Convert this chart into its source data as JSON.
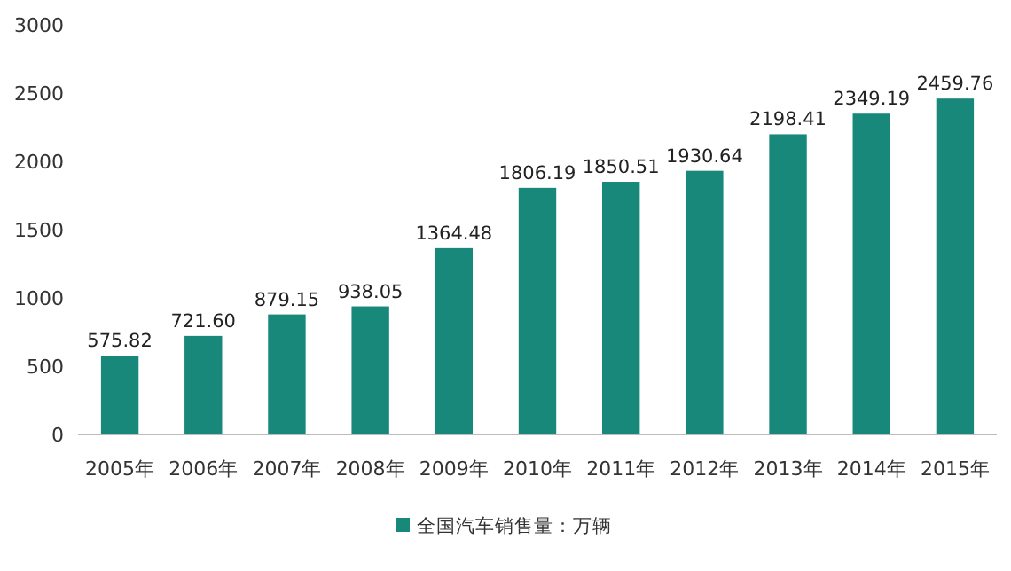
{
  "chart_data": {
    "type": "bar",
    "categories": [
      "2005年",
      "2006年",
      "2007年",
      "2008年",
      "2009年",
      "2010年",
      "2011年",
      "2012年",
      "2013年",
      "2014年",
      "2015年"
    ],
    "series": [
      {
        "name": "全国汽车销售量：万辆",
        "color": "#17887a",
        "values": [
          575.82,
          721.6,
          879.15,
          938.05,
          1364.48,
          1806.19,
          1850.51,
          1930.64,
          2198.41,
          2349.19,
          2459.76
        ],
        "value_labels": [
          "575.82",
          "721.60",
          "879.15",
          "938.05",
          "1364.48",
          "1806.19",
          "1850.51",
          "1930.64",
          "2198.41",
          "2349.19",
          "2459.76"
        ]
      }
    ],
    "ylim": [
      0,
      3000
    ],
    "yticks": [
      0,
      500,
      1000,
      1500,
      2000,
      2500,
      3000
    ],
    "legend": "bottom"
  }
}
